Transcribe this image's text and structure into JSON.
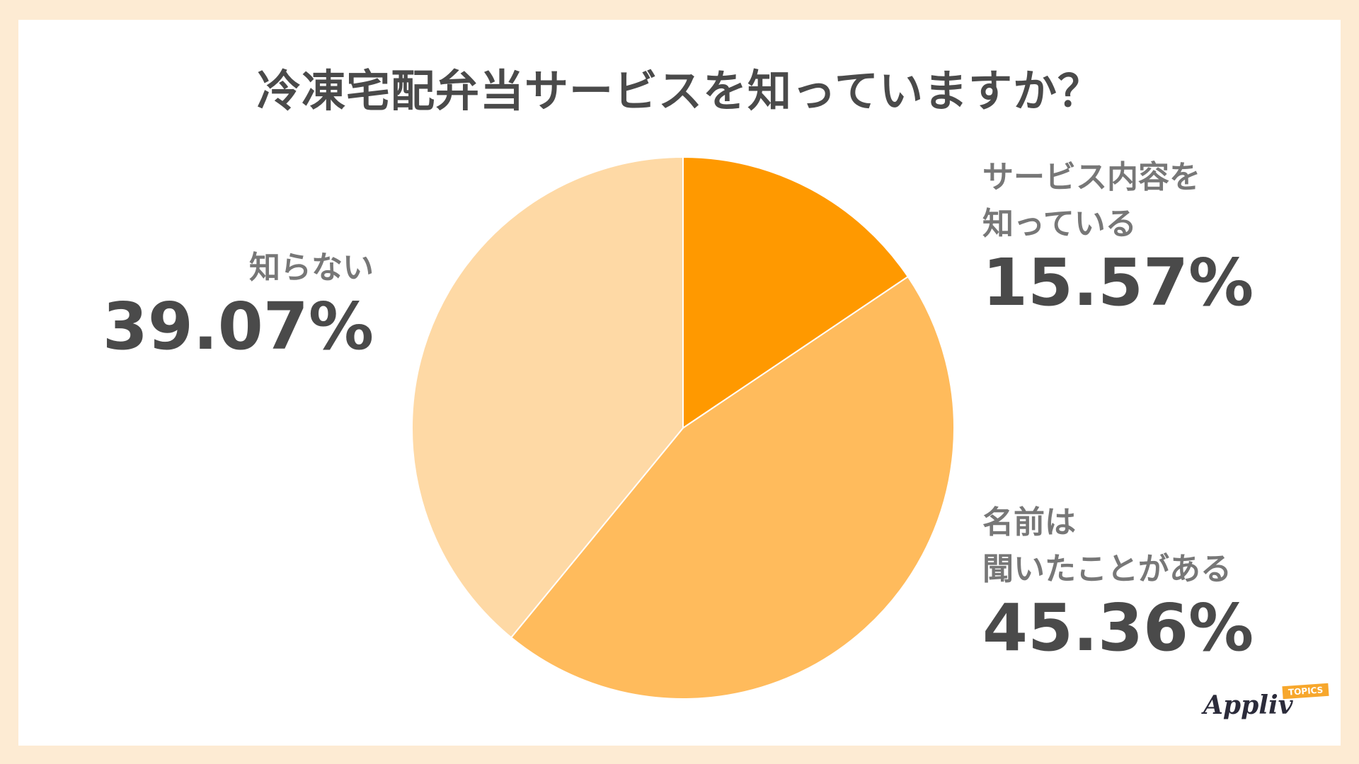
{
  "chart_data": {
    "type": "pie",
    "title": "冷凍宅配弁当サービスを知っていますか？",
    "slices": [
      {
        "label": "サービス内容を\n知っている",
        "value": 15.57,
        "display": "15.57%",
        "color": "#ff9900"
      },
      {
        "label": "名前は\n聞いたことがある",
        "value": 45.36,
        "display": "45.36%",
        "color": "#ffbb5c"
      },
      {
        "label": "知らない",
        "value": 39.07,
        "display": "39.07%",
        "color": "#fed9a5"
      }
    ]
  },
  "brand": {
    "logo_text": "Appliv",
    "logo_tag": "TOPICS"
  }
}
